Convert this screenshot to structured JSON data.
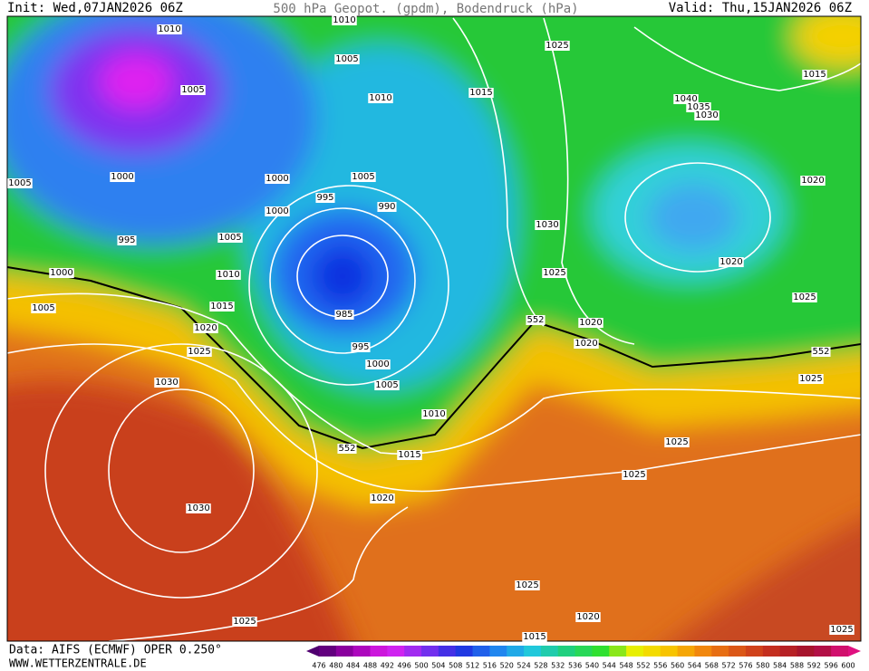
{
  "header": {
    "init": "Init: Wed,07JAN2026 06Z",
    "title": "500 hPa Geopot. (gpdm), Bodendruck (hPa)",
    "valid": "Valid: Thu,15JAN2026 06Z"
  },
  "isobar_labels": [
    1010,
    1010,
    1005,
    1005,
    1010,
    1015,
    1025,
    1015,
    1040,
    1035,
    1030,
    1005,
    1000,
    1000,
    995,
    1005,
    990,
    1000,
    995,
    1005,
    1030,
    1020,
    1020,
    1000,
    1010,
    1025,
    1025,
    1005,
    1015,
    985,
    552,
    1020,
    1020,
    1020,
    995,
    552,
    1025,
    1000,
    1030,
    1005,
    1025,
    1010,
    552,
    1015,
    1025,
    1025,
    1020,
    1030,
    1025,
    1020,
    1025,
    1015,
    1025
  ],
  "legend": {
    "values": [
      476,
      480,
      484,
      488,
      492,
      496,
      500,
      504,
      508,
      512,
      516,
      520,
      524,
      528,
      532,
      536,
      540,
      544,
      548,
      552,
      556,
      560,
      564,
      568,
      572,
      576,
      580,
      584,
      588,
      592,
      596,
      600
    ]
  },
  "footer": {
    "data": "Data: AIFS (ECMWF) OPER 0.250°",
    "site": "WWW.WETTERZENTRALE.DE"
  }
}
